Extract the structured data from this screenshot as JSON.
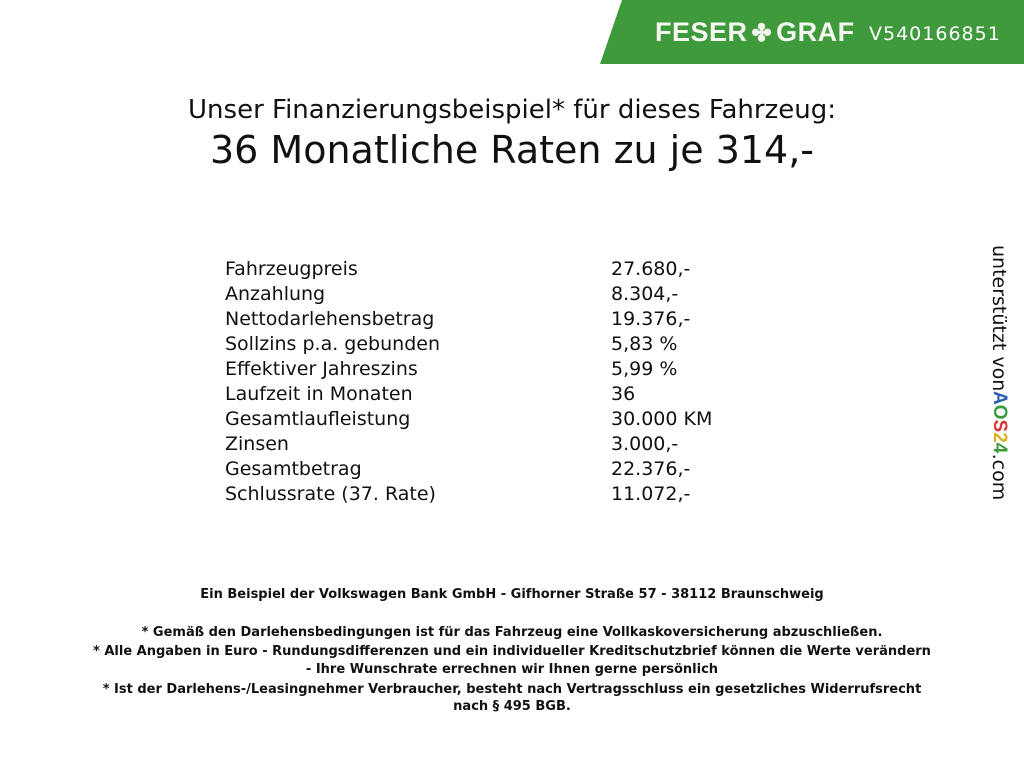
{
  "header": {
    "brand": "FESER",
    "brand2": "GRAF",
    "vehicle_id": "V540166851",
    "brand_color": "#3f9a3c"
  },
  "title": {
    "line1": "Unser Finanzierungsbeispiel* für dieses Fahrzeug:",
    "line2": "36 Monatliche Raten zu je 314,-"
  },
  "rows": [
    {
      "label": "Fahrzeugpreis",
      "value": "27.680,-"
    },
    {
      "label": "Anzahlung",
      "value": "8.304,-"
    },
    {
      "label": "Nettodarlehensbetrag",
      "value": "19.376,-"
    },
    {
      "label": "Sollzins p.a. gebunden",
      "value": "5,83 %"
    },
    {
      "label": "Effektiver Jahreszins",
      "value": "5,99 %"
    },
    {
      "label": "Laufzeit in Monaten",
      "value": "36"
    },
    {
      "label": "Gesamtlaufleistung",
      "value": "30.000 KM"
    },
    {
      "label": "Zinsen",
      "value": "3.000,-"
    },
    {
      "label": "Gesamtbetrag",
      "value": "22.376,-"
    },
    {
      "label": "Schlussrate (37. Rate)",
      "value": "11.072,-"
    }
  ],
  "side": {
    "text": "unterstützt von",
    "logo": "AOS24",
    ".com": ".com"
  },
  "footer": {
    "bank": "Ein Beispiel der Volkswagen Bank GmbH - Gifhorner Straße 57 - 38112 Braunschweig",
    "note1": "* Gemäß den Darlehensbedingungen ist für das Fahrzeug eine Vollkaskoversicherung abzuschließen.",
    "note2a": "* Alle Angaben in Euro - Rundungsdifferenzen und ein individueller Kreditschutzbrief können die Werte verändern",
    "note2b": "- Ihre Wunschrate errechnen wir Ihnen gerne persönlich",
    "note3a": "* Ist der Darlehens-/Leasingnehmer Verbraucher, besteht nach Vertragsschluss ein gesetzliches Widerrufsrecht",
    "note3b": "nach § 495 BGB."
  }
}
